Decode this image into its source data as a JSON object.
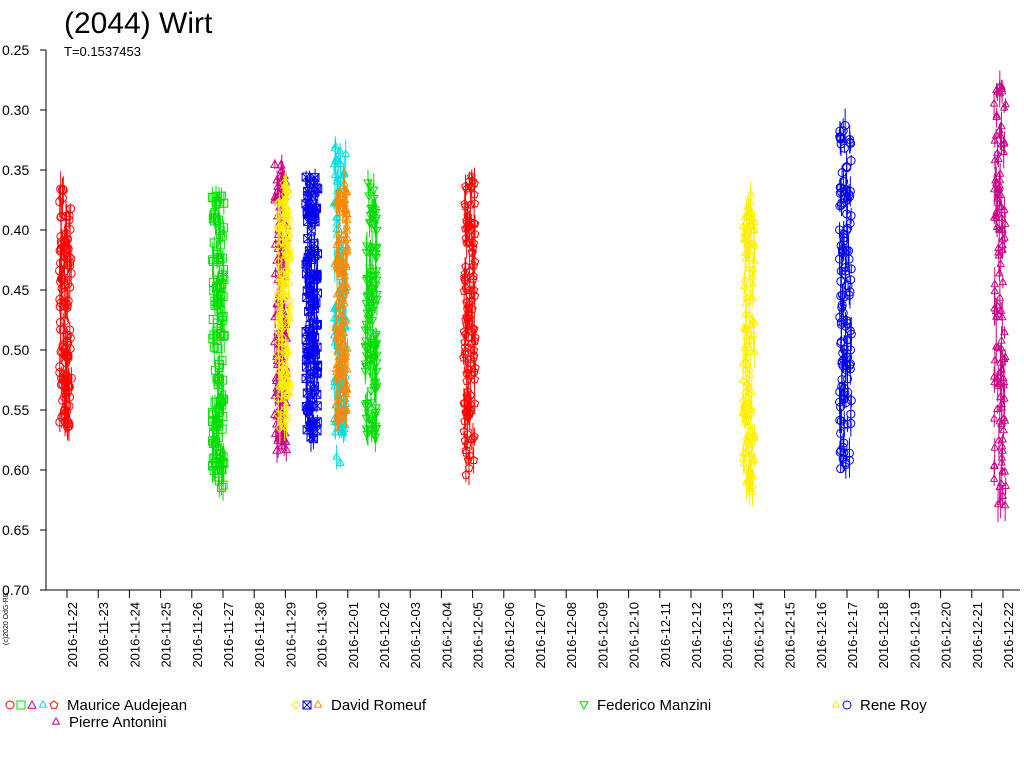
{
  "chart_data": {
    "type": "scatter",
    "title": "(2044) Wirt",
    "subtitle": "T=0.1537453",
    "copyright": "(c)2020 OdG-RB",
    "y_axis": {
      "range": [
        0.25,
        0.7
      ],
      "inverted": true,
      "ticks": [
        "0.25",
        "0.30",
        "0.35",
        "0.40",
        "0.45",
        "0.50",
        "0.55",
        "0.60",
        "0.65",
        "0.70"
      ]
    },
    "x_axis": {
      "ticks": [
        "2016-11-22",
        "2016-11-23",
        "2016-11-24",
        "2016-11-25",
        "2016-11-26",
        "2016-11-27",
        "2016-11-28",
        "2016-11-29",
        "2016-11-30",
        "2016-12-01",
        "2016-12-02",
        "2016-12-03",
        "2016-12-04",
        "2016-12-05",
        "2016-12-06",
        "2016-12-07",
        "2016-12-08",
        "2016-12-09",
        "2016-12-10",
        "2016-12-11",
        "2016-12-12",
        "2016-12-13",
        "2016-12-14",
        "2016-12-15",
        "2016-12-16",
        "2016-12-17",
        "2016-12-18",
        "2016-12-19",
        "2016-12-20",
        "2016-12-21",
        "2016-12-22"
      ]
    },
    "legend": [
      {
        "name": "Maurice Audejean",
        "colors": [
          "#ff0000",
          "#00dd00",
          "#cc0088",
          "#00dddd",
          "#ff0000"
        ],
        "symbols": [
          "circle",
          "square",
          "triangle",
          "star",
          "pentagon"
        ]
      },
      {
        "name": "David Romeuf",
        "colors": [
          "#ffee00",
          "#0000ee",
          "#ff8800"
        ],
        "symbols": [
          "diamond",
          "cross",
          "star"
        ]
      },
      {
        "name": "Federico Manzini",
        "colors": [
          "#00dd00"
        ],
        "symbols": [
          "triangle-down"
        ]
      },
      {
        "name": "Rene Roy",
        "colors": [
          "#ffee00",
          "#0000ee"
        ],
        "symbols": [
          "star",
          "circle"
        ]
      },
      {
        "name": "Pierre Antonini",
        "colors": [
          "#cc0088"
        ],
        "symbols": [
          "star"
        ]
      }
    ],
    "series": [
      {
        "date": "2016-11-21.95",
        "color": "#ff0000",
        "symbol": "circle",
        "y_range": [
          0.365,
          0.565
        ]
      },
      {
        "date": "2016-11-26.85",
        "color": "#00dd00",
        "symbol": "square",
        "y_range": [
          0.37,
          0.615
        ]
      },
      {
        "date": "2016-11-28.85",
        "color": "#cc0088",
        "symbol": "triangle",
        "y_range": [
          0.345,
          0.59
        ]
      },
      {
        "date": "2016-11-28.95",
        "color": "#ffee00",
        "symbol": "diamond",
        "y_range": [
          0.36,
          0.565
        ]
      },
      {
        "date": "2016-11-29.85",
        "color": "#0000ee",
        "symbol": "cross",
        "y_range": [
          0.355,
          0.575
        ]
      },
      {
        "date": "2016-11-30.75",
        "color": "#00dddd",
        "symbol": "star",
        "y_range": [
          0.33,
          0.595
        ]
      },
      {
        "date": "2016-11-30.80",
        "color": "#ff8800",
        "symbol": "star",
        "y_range": [
          0.36,
          0.56
        ]
      },
      {
        "date": "2016-12-01.75",
        "color": "#00dd00",
        "symbol": "triangle-down",
        "y_range": [
          0.36,
          0.575
        ]
      },
      {
        "date": "2016-12-04.90",
        "color": "#ff0000",
        "symbol": "pentagon",
        "y_range": [
          0.355,
          0.605
        ]
      },
      {
        "date": "2016-12-13.85",
        "color": "#ffee00",
        "symbol": "star",
        "y_range": [
          0.37,
          0.62
        ]
      },
      {
        "date": "2016-12-16.95",
        "color": "#0000ee",
        "symbol": "circle",
        "y_range": [
          0.31,
          0.6
        ]
      },
      {
        "date": "2016-12-21.90",
        "color": "#cc0088",
        "symbol": "star",
        "y_range": [
          0.28,
          0.63
        ]
      }
    ]
  }
}
